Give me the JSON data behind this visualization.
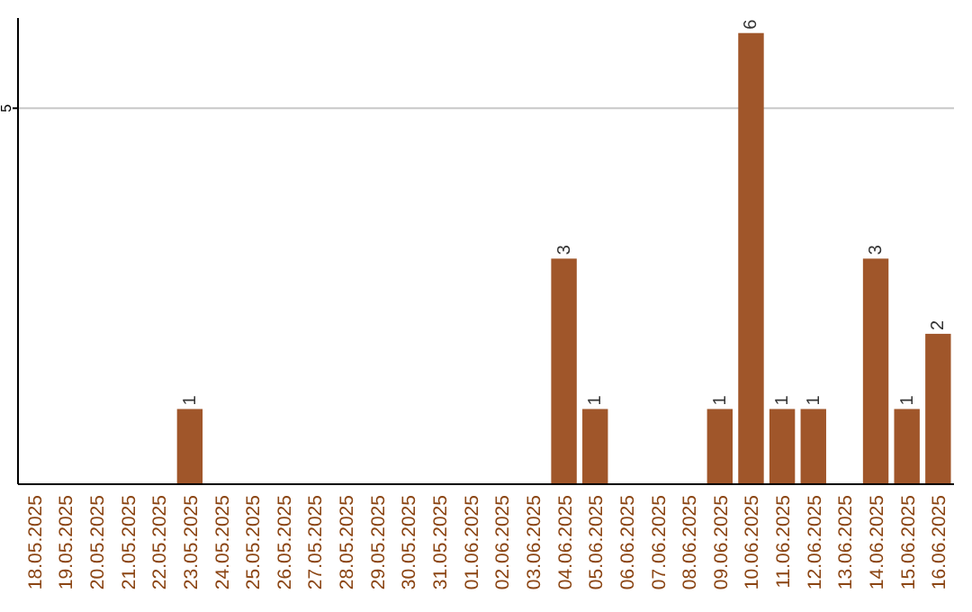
{
  "chart_data": {
    "type": "bar",
    "categories": [
      "18.05.2025",
      "19.05.2025",
      "20.05.2025",
      "21.05.2025",
      "22.05.2025",
      "23.05.2025",
      "24.05.2025",
      "25.05.2025",
      "26.05.2025",
      "27.05.2025",
      "28.05.2025",
      "29.05.2025",
      "30.05.2025",
      "31.05.2025",
      "01.06.2025",
      "02.06.2025",
      "03.06.2025",
      "04.06.2025",
      "05.06.2025",
      "06.06.2025",
      "07.06.2025",
      "08.06.2025",
      "09.06.2025",
      "10.06.2025",
      "11.06.2025",
      "12.06.2025",
      "13.06.2025",
      "14.06.2025",
      "15.06.2025",
      "16.06.2025"
    ],
    "values": [
      0,
      0,
      0,
      0,
      0,
      1,
      0,
      0,
      0,
      0,
      0,
      0,
      0,
      0,
      0,
      0,
      0,
      3,
      1,
      0,
      0,
      0,
      1,
      6,
      1,
      1,
      0,
      3,
      1,
      2
    ],
    "value_labels": [
      null,
      null,
      null,
      null,
      null,
      "1",
      null,
      null,
      null,
      null,
      null,
      null,
      null,
      null,
      null,
      null,
      null,
      "3",
      "1",
      null,
      null,
      null,
      "1",
      "6",
      "1",
      "1",
      null,
      "3",
      "1",
      "2"
    ],
    "color": "#a0562a",
    "ylim": [
      0,
      6.2
    ],
    "yticks": [
      5
    ],
    "grid": "y"
  }
}
